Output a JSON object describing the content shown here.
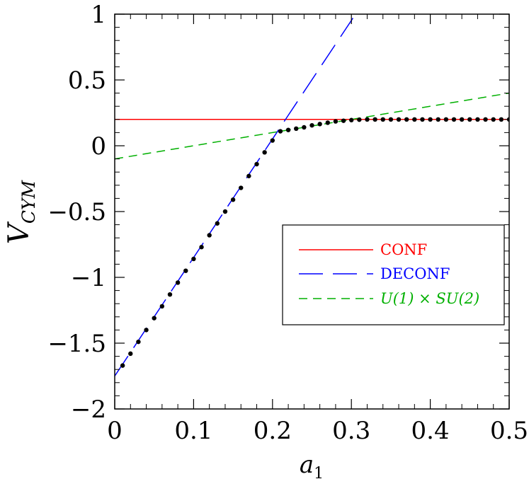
{
  "chart_data": {
    "type": "line",
    "xlabel": "a",
    "xlabel_sub": "1",
    "ylabel": "V",
    "ylabel_sub": "CYM",
    "xlim": [
      0,
      0.5
    ],
    "ylim": [
      -2,
      1
    ],
    "xticks": [
      0,
      0.1,
      0.2,
      0.3,
      0.4,
      0.5
    ],
    "yticks": [
      -2,
      -1.5,
      -1,
      -0.5,
      0,
      0.5,
      1
    ],
    "xtick_labels": [
      "0",
      "0.1",
      "0.2",
      "0.3",
      "0.4",
      "0.5"
    ],
    "ytick_labels": [
      "−2",
      "−1.5",
      "−1",
      "−0.5",
      "0",
      "0.5",
      "1"
    ],
    "grid": false,
    "legend_position": "center-right",
    "series": [
      {
        "name": "CONF",
        "color": "#ff0000",
        "dash": "solid",
        "x": [
          0,
          0.5
        ],
        "y": [
          0.2,
          0.2
        ]
      },
      {
        "name": "DECONF",
        "color": "#0000ff",
        "dash": "long-dash",
        "x": [
          0,
          0.302
        ],
        "y": [
          -1.75,
          0.97
        ]
      },
      {
        "name": "U(1) × SU(2)",
        "color": "#00b000",
        "dash": "short-dash",
        "x": [
          0,
          0.5
        ],
        "y": [
          -0.1,
          0.4
        ]
      },
      {
        "name": "",
        "color": "#000000",
        "marker": "dot",
        "x": [
          0.01,
          0.02,
          0.03,
          0.04,
          0.05,
          0.06,
          0.07,
          0.08,
          0.09,
          0.1,
          0.11,
          0.12,
          0.13,
          0.14,
          0.15,
          0.16,
          0.17,
          0.18,
          0.19,
          0.2,
          0.21,
          0.22,
          0.23,
          0.24,
          0.25,
          0.26,
          0.27,
          0.28,
          0.29,
          0.3,
          0.31,
          0.32,
          0.33,
          0.34,
          0.35,
          0.36,
          0.37,
          0.38,
          0.39,
          0.4,
          0.41,
          0.42,
          0.43,
          0.44,
          0.45,
          0.46,
          0.47,
          0.48,
          0.49,
          0.5
        ],
        "y": [
          -1.67,
          -1.58,
          -1.49,
          -1.4,
          -1.31,
          -1.22,
          -1.13,
          -1.04,
          -0.95,
          -0.86,
          -0.77,
          -0.68,
          -0.59,
          -0.5,
          -0.41,
          -0.32,
          -0.23,
          -0.14,
          -0.05,
          0.04,
          0.11,
          0.12,
          0.13,
          0.14,
          0.155,
          0.165,
          0.175,
          0.185,
          0.19,
          0.195,
          0.198,
          0.2,
          0.2,
          0.2,
          0.2,
          0.2,
          0.2,
          0.2,
          0.2,
          0.2,
          0.2,
          0.2,
          0.2,
          0.2,
          0.2,
          0.2,
          0.2,
          0.2,
          0.2,
          0.2
        ]
      }
    ]
  }
}
